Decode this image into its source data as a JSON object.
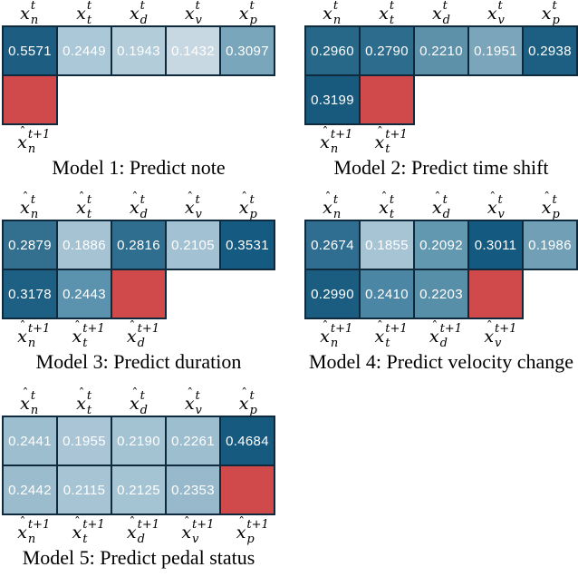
{
  "chart_data": [
    {
      "type": "heatmap",
      "title": "Model 1: Predict note",
      "x_labels": [
        "x̂_n^t",
        "x̂_t^t",
        "x̂_d^t",
        "x̂_v^t",
        "x̂_p^t"
      ],
      "row_t_values": [
        0.5571,
        0.2449,
        0.1943,
        0.1432,
        0.3097
      ],
      "row_t1_labels": [
        "x̂_n^t+1"
      ],
      "row_t1_values": [
        "masked"
      ]
    },
    {
      "type": "heatmap",
      "title": "Model 2: Predict time shift",
      "x_labels": [
        "x̂_n^t",
        "x̂_t^t",
        "x̂_d^t",
        "x̂_v^t",
        "x̂_p^t"
      ],
      "row_t_values": [
        0.296,
        0.279,
        0.221,
        0.1951,
        0.2938
      ],
      "row_t1_labels": [
        "x̂_n^t+1",
        "x̂_t^t+1"
      ],
      "row_t1_values": [
        0.3199,
        "masked"
      ]
    },
    {
      "type": "heatmap",
      "title": "Model 3: Predict duration",
      "x_labels": [
        "x̂_n^t",
        "x̂_t^t",
        "x̂_d^t",
        "x̂_v^t",
        "x̂_p^t"
      ],
      "row_t_values": [
        0.2879,
        0.1886,
        0.2816,
        0.2105,
        0.3531
      ],
      "row_t1_labels": [
        "x̂_n^t+1",
        "x̂_t^t+1",
        "x̂_d^t+1"
      ],
      "row_t1_values": [
        0.3178,
        0.2443,
        "masked"
      ]
    },
    {
      "type": "heatmap",
      "title": "Model 4: Predict velocity change",
      "x_labels": [
        "x̂_n^t",
        "x̂_t^t",
        "x̂_d^t",
        "x̂_v^t",
        "x̂_p^t"
      ],
      "row_t_values": [
        0.2674,
        0.1855,
        0.2092,
        0.3011,
        0.1986
      ],
      "row_t1_labels": [
        "x̂_n^t+1",
        "x̂_t^t+1",
        "x̂_d^t+1",
        "x̂_v^t+1"
      ],
      "row_t1_values": [
        0.299,
        0.241,
        0.2203,
        "masked"
      ]
    },
    {
      "type": "heatmap",
      "title": "Model 5: Predict pedal status",
      "x_labels": [
        "x̂_n^t",
        "x̂_t^t",
        "x̂_d^t",
        "x̂_v^t",
        "x̂_p^t"
      ],
      "row_t_values": [
        0.2441,
        0.1955,
        0.219,
        0.2261,
        0.4684
      ],
      "row_t1_labels": [
        "x̂_n^t+1",
        "x̂_t^t+1",
        "x̂_d^t+1",
        "x̂_v^t+1",
        "x̂_p^t+1"
      ],
      "row_t1_values": [
        0.2442,
        0.2115,
        0.2125,
        0.2353,
        "masked"
      ]
    }
  ],
  "figure": {
    "background": "#ffffff",
    "colors": {
      "masked_red": "#d0494b",
      "cell_border": "#0f2a3c",
      "value_text": "#ffffff"
    },
    "header_sup": "t",
    "bottom_sup": "t+1",
    "subscripts": [
      "n",
      "t",
      "d",
      "v",
      "p"
    ],
    "models": [
      {
        "caption": "Model 1: Predict note",
        "top_row": [
          {
            "value": "0.5571",
            "color": "#1d5d81"
          },
          {
            "value": "0.2449",
            "color": "#aac8d7"
          },
          {
            "value": "0.1943",
            "color": "#b3ccd9"
          },
          {
            "value": "0.1432",
            "color": "#c8d8e2"
          },
          {
            "value": "0.3097",
            "color": "#7aa6bb"
          }
        ],
        "bottom_row": [
          {
            "masked": true
          }
        ]
      },
      {
        "caption": "Model 2: Predict time shift",
        "top_row": [
          {
            "value": "0.2960",
            "color": "#276888"
          },
          {
            "value": "0.2790",
            "color": "#2e6c8d"
          },
          {
            "value": "0.2210",
            "color": "#5d90a9"
          },
          {
            "value": "0.1951",
            "color": "#7ba5ba"
          },
          {
            "value": "0.2938",
            "color": "#1d5f83"
          }
        ],
        "bottom_row": [
          {
            "value": "0.3199",
            "color": "#18597e"
          },
          {
            "masked": true
          }
        ]
      },
      {
        "caption": "Model 3: Predict duration",
        "top_row": [
          {
            "value": "0.2879",
            "color": "#33708f"
          },
          {
            "value": "0.1886",
            "color": "#a5c3d3"
          },
          {
            "value": "0.2816",
            "color": "#2f6e8f"
          },
          {
            "value": "0.2105",
            "color": "#a2c1d2"
          },
          {
            "value": "0.3531",
            "color": "#155a80"
          }
        ],
        "bottom_row": [
          {
            "value": "0.3178",
            "color": "#1e6083"
          },
          {
            "value": "0.2443",
            "color": "#5b92ad"
          },
          {
            "masked": true
          }
        ]
      },
      {
        "caption": "Model 4: Predict velocity change",
        "top_row": [
          {
            "value": "0.2674",
            "color": "#2f6e90"
          },
          {
            "value": "0.1855",
            "color": "#a6c4d4"
          },
          {
            "value": "0.2092",
            "color": "#6398b1"
          },
          {
            "value": "0.3011",
            "color": "#14597f"
          },
          {
            "value": "0.1986",
            "color": "#719fb6"
          }
        ],
        "bottom_row": [
          {
            "value": "0.2990",
            "color": "#1b5d81"
          },
          {
            "value": "0.2410",
            "color": "#4b87a4"
          },
          {
            "value": "0.2203",
            "color": "#578fa9"
          },
          {
            "masked": true
          }
        ]
      },
      {
        "caption": "Model 5: Predict pedal status",
        "top_row": [
          {
            "value": "0.2441",
            "color": "#9dbecf"
          },
          {
            "value": "0.1955",
            "color": "#aac6d6"
          },
          {
            "value": "0.2190",
            "color": "#a3c2d2"
          },
          {
            "value": "0.2261",
            "color": "#9cbecf"
          },
          {
            "value": "0.4684",
            "color": "#165a80"
          }
        ],
        "bottom_row": [
          {
            "value": "0.2442",
            "color": "#9bbccd"
          },
          {
            "value": "0.2115",
            "color": "#a6c4d4"
          },
          {
            "value": "0.2125",
            "color": "#a4c3d3"
          },
          {
            "value": "0.2353",
            "color": "#97b9cb"
          },
          {
            "masked": true
          }
        ]
      }
    ]
  }
}
